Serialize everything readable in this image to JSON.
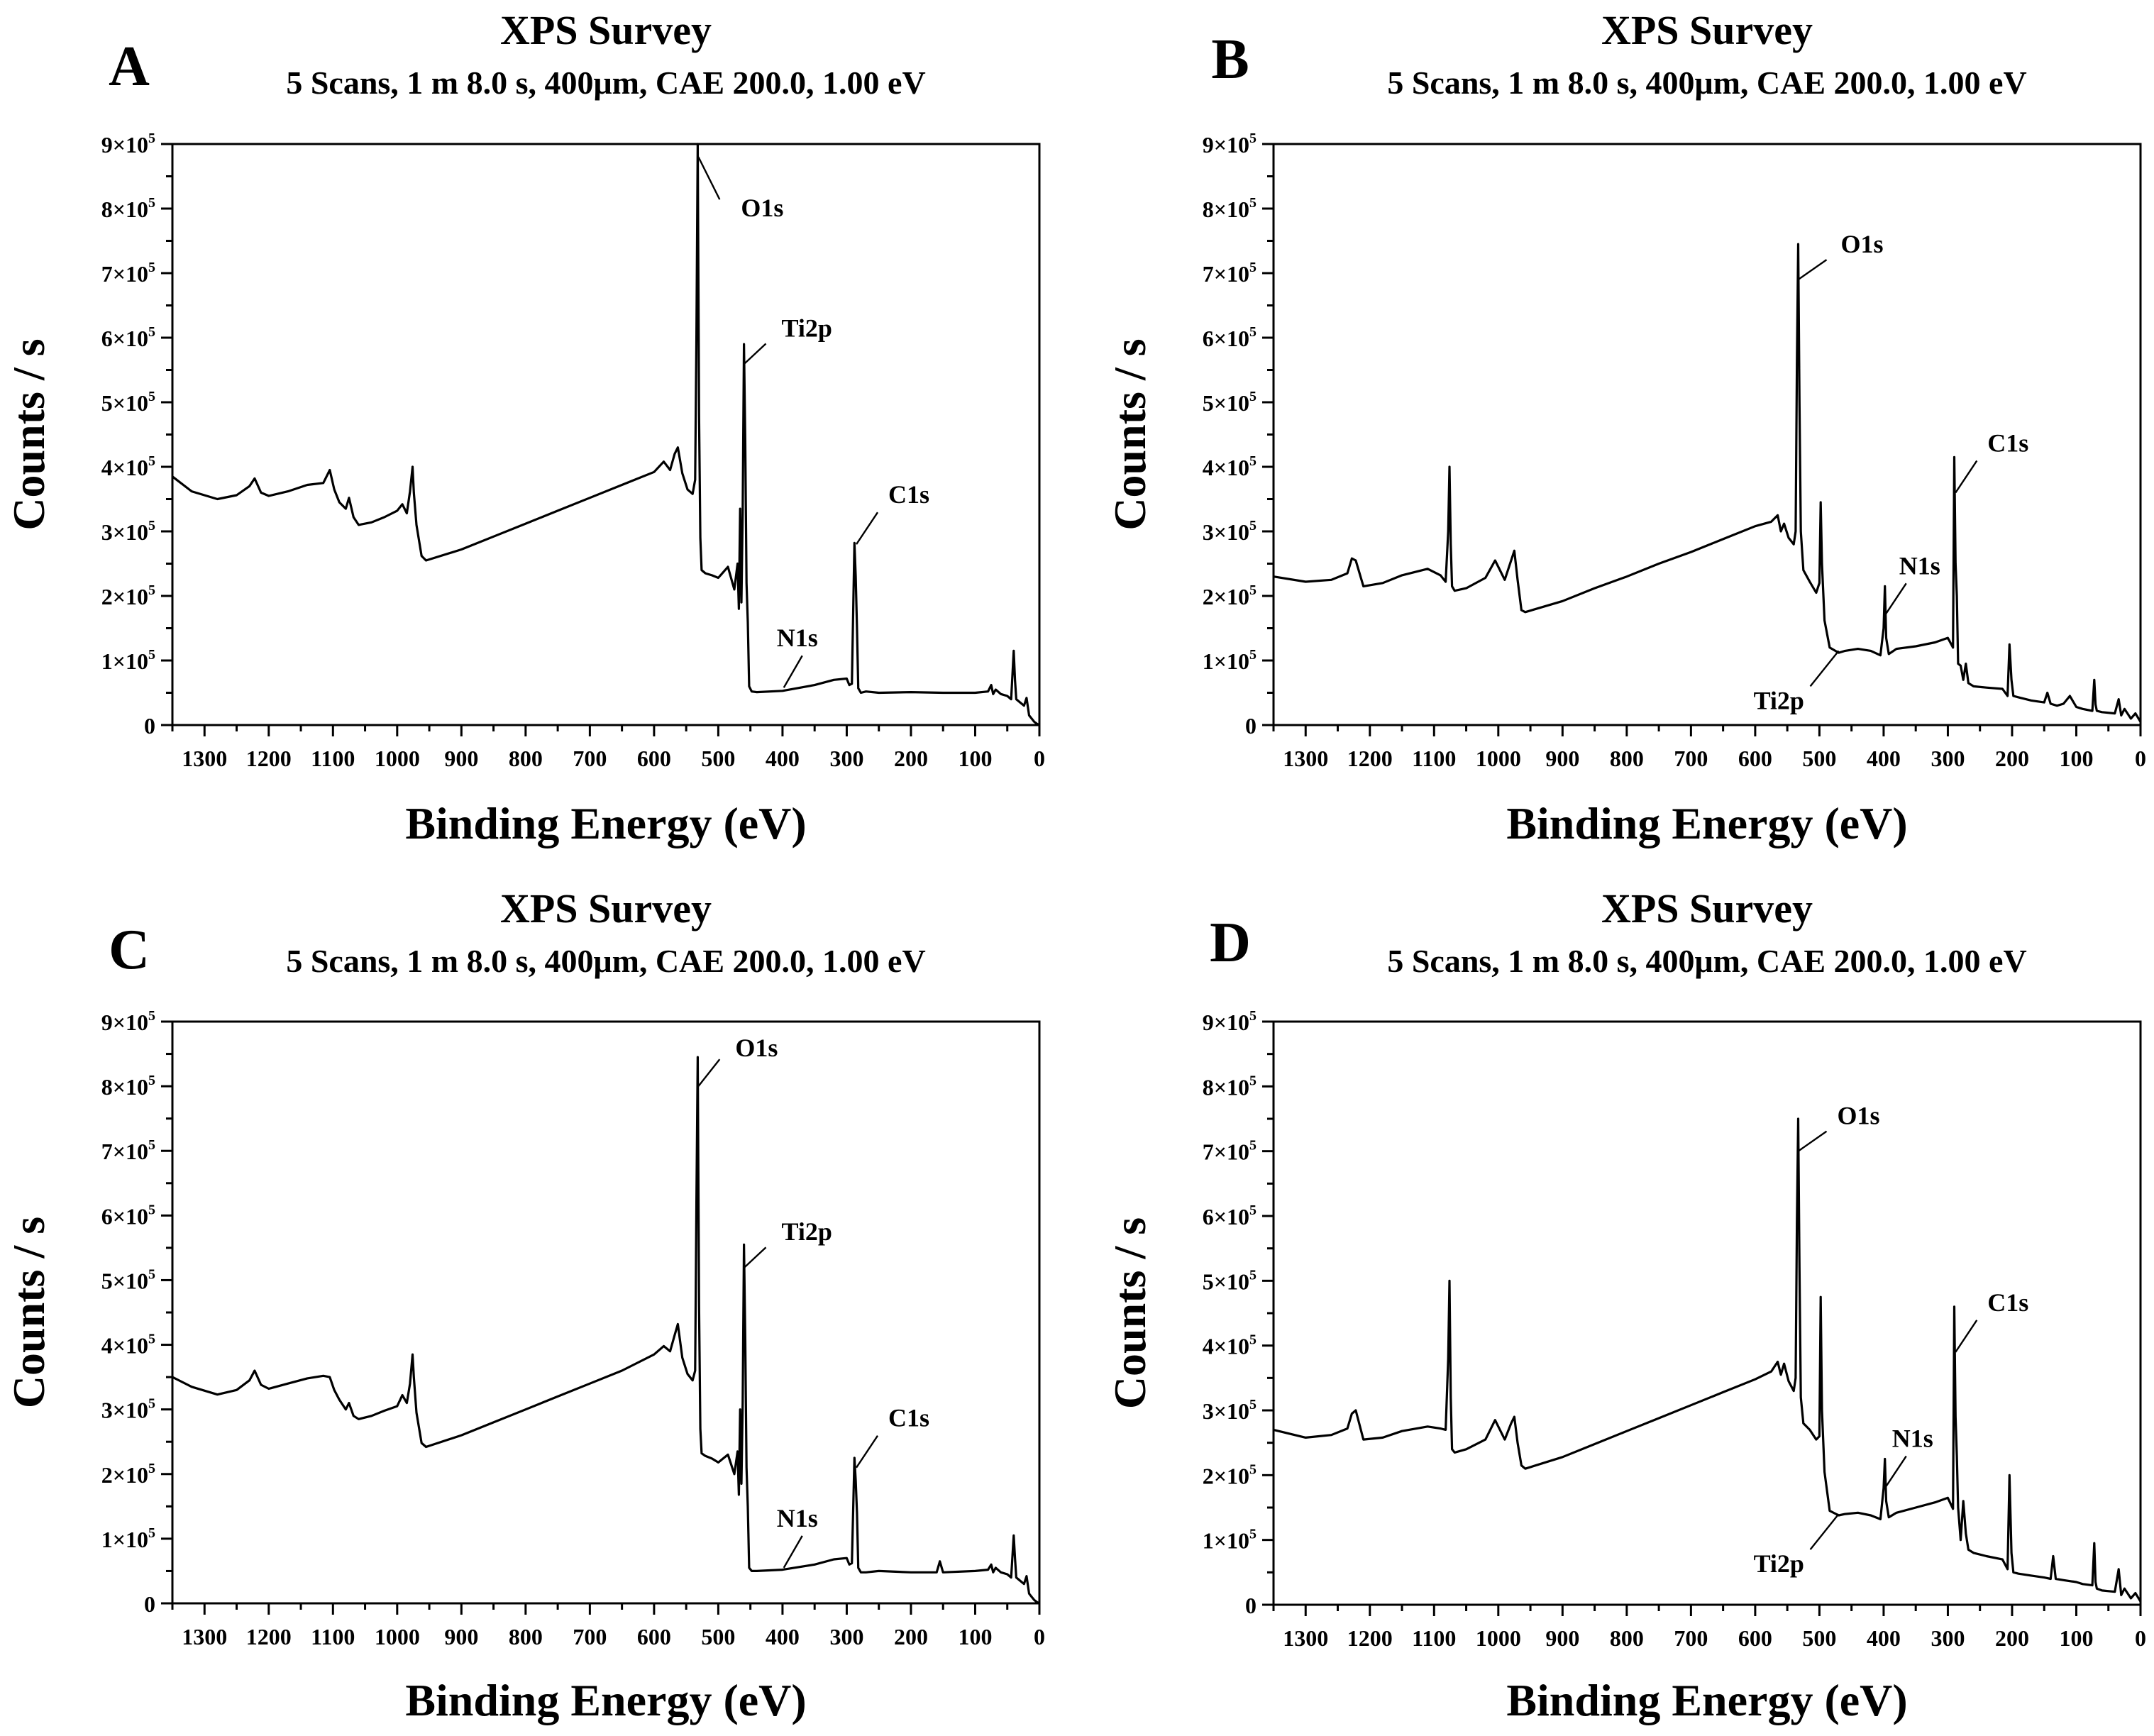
{
  "figure": {
    "panels": [
      "A",
      "B",
      "C",
      "D"
    ]
  },
  "colors": {
    "line": "#000000",
    "background": "#ffffff"
  },
  "chart_data": [
    {
      "panel": "A",
      "type": "line",
      "title": "XPS Survey",
      "subtitle": "5 Scans, 1 m 8.0 s, 400μm, CAE 200.0, 1.00 eV",
      "xlabel": "Binding Energy (eV)",
      "ylabel": "Counts / s",
      "xlim": [
        1350,
        0
      ],
      "ylim": [
        0,
        900000
      ],
      "xticks": [
        1300,
        1200,
        1100,
        1000,
        900,
        800,
        700,
        600,
        500,
        400,
        300,
        200,
        100,
        0
      ],
      "yticks": [
        {
          "value": 0,
          "mantissa": "0",
          "exp": ""
        },
        {
          "value": 100000,
          "mantissa": "1×10",
          "exp": "5"
        },
        {
          "value": 200000,
          "mantissa": "2×10",
          "exp": "5"
        },
        {
          "value": 300000,
          "mantissa": "3×10",
          "exp": "5"
        },
        {
          "value": 400000,
          "mantissa": "4×10",
          "exp": "5"
        },
        {
          "value": 500000,
          "mantissa": "5×10",
          "exp": "5"
        },
        {
          "value": 600000,
          "mantissa": "6×10",
          "exp": "5"
        },
        {
          "value": 700000,
          "mantissa": "7×10",
          "exp": "5"
        },
        {
          "value": 800000,
          "mantissa": "8×10",
          "exp": "5"
        },
        {
          "value": 900000,
          "mantissa": "9×10",
          "exp": "5"
        }
      ],
      "grid": false,
      "x": [
        1350,
        1320,
        1280,
        1250,
        1230,
        1222,
        1212,
        1200,
        1170,
        1140,
        1115,
        1105,
        1098,
        1090,
        1080,
        1075,
        1068,
        1060,
        1040,
        1020,
        1000,
        992,
        985,
        980,
        976,
        974,
        970,
        962,
        955,
        900,
        850,
        800,
        750,
        700,
        650,
        600,
        585,
        575,
        568,
        563,
        556,
        548,
        540,
        536,
        534,
        532,
        530,
        528,
        526,
        520,
        510,
        500,
        485,
        475,
        470,
        468,
        466,
        464,
        462,
        460,
        458,
        456,
        454,
        452,
        448,
        440,
        400,
        350,
        320,
        300,
        296,
        292,
        288,
        286,
        284,
        282,
        278,
        270,
        250,
        200,
        150,
        100,
        80,
        75,
        72,
        68,
        60,
        50,
        44,
        40,
        38,
        36,
        30,
        24,
        20,
        16,
        12,
        8,
        4,
        0
      ],
      "y": [
        385000,
        362000,
        350000,
        356000,
        370000,
        382000,
        360000,
        355000,
        362000,
        372000,
        375000,
        395000,
        365000,
        345000,
        335000,
        352000,
        322000,
        310000,
        314000,
        322000,
        332000,
        342000,
        328000,
        362000,
        400000,
        360000,
        310000,
        262000,
        255000,
        272000,
        292000,
        312000,
        332000,
        352000,
        372000,
        392000,
        408000,
        395000,
        420000,
        430000,
        390000,
        365000,
        358000,
        380000,
        600000,
        900000,
        480000,
        290000,
        240000,
        235000,
        232000,
        228000,
        245000,
        210000,
        250000,
        180000,
        335000,
        190000,
        330000,
        590000,
        440000,
        220000,
        160000,
        60000,
        52000,
        51000,
        53000,
        62000,
        70000,
        72000,
        62000,
        64000,
        282000,
        230000,
        150000,
        57000,
        50000,
        52000,
        50000,
        51000,
        50000,
        50000,
        52000,
        62000,
        48000,
        55000,
        48000,
        45000,
        40000,
        115000,
        70000,
        40000,
        35000,
        30000,
        42000,
        15000,
        10000,
        5000,
        2000,
        0
      ],
      "annotations": [
        {
          "label": "O1s",
          "x": 531,
          "y": 880000
        },
        {
          "label": "Ti2p",
          "x": 459,
          "y": 560000
        },
        {
          "label": "C1s",
          "x": 285,
          "y": 280000
        },
        {
          "label": "N1s",
          "x": 398,
          "y": 58000
        }
      ]
    },
    {
      "panel": "B",
      "type": "line",
      "title": "XPS Survey",
      "subtitle": "5 Scans, 1 m 8.0 s, 400μm, CAE 200.0, 1.00 eV",
      "xlabel": "Binding Energy (eV)",
      "ylabel": "Counts / s",
      "xlim": [
        1350,
        0
      ],
      "ylim": [
        0,
        900000
      ],
      "xticks": [
        1300,
        1200,
        1100,
        1000,
        900,
        800,
        700,
        600,
        500,
        400,
        300,
        200,
        100,
        0
      ],
      "yticks": [
        {
          "value": 0,
          "mantissa": "0",
          "exp": ""
        },
        {
          "value": 100000,
          "mantissa": "1×10",
          "exp": "5"
        },
        {
          "value": 200000,
          "mantissa": "2×10",
          "exp": "5"
        },
        {
          "value": 300000,
          "mantissa": "3×10",
          "exp": "5"
        },
        {
          "value": 400000,
          "mantissa": "4×10",
          "exp": "5"
        },
        {
          "value": 500000,
          "mantissa": "5×10",
          "exp": "5"
        },
        {
          "value": 600000,
          "mantissa": "6×10",
          "exp": "5"
        },
        {
          "value": 700000,
          "mantissa": "7×10",
          "exp": "5"
        },
        {
          "value": 800000,
          "mantissa": "8×10",
          "exp": "5"
        },
        {
          "value": 900000,
          "mantissa": "9×10",
          "exp": "5"
        }
      ],
      "grid": false,
      "x": [
        1350,
        1300,
        1260,
        1235,
        1228,
        1222,
        1210,
        1180,
        1150,
        1110,
        1090,
        1082,
        1078,
        1076,
        1074,
        1072,
        1068,
        1050,
        1020,
        1005,
        1000,
        990,
        980,
        975,
        970,
        964,
        958,
        900,
        850,
        800,
        750,
        700,
        650,
        600,
        575,
        565,
        560,
        555,
        548,
        540,
        537,
        535,
        533,
        531,
        529,
        525,
        515,
        505,
        500,
        498,
        496,
        492,
        484,
        470,
        460,
        440,
        420,
        405,
        400,
        398,
        396,
        392,
        380,
        350,
        320,
        300,
        292,
        290,
        288,
        286,
        284,
        280,
        276,
        272,
        268,
        260,
        240,
        215,
        207,
        204,
        201,
        198,
        190,
        170,
        150,
        145,
        140,
        130,
        120,
        110,
        100,
        90,
        75,
        72,
        70,
        68,
        60,
        40,
        34,
        30,
        25,
        15,
        8,
        0
      ],
      "y": [
        230000,
        222000,
        225000,
        235000,
        258000,
        255000,
        215000,
        220000,
        232000,
        242000,
        232000,
        222000,
        300000,
        400000,
        280000,
        215000,
        208000,
        212000,
        228000,
        255000,
        245000,
        225000,
        255000,
        270000,
        225000,
        178000,
        175000,
        192000,
        212000,
        230000,
        250000,
        268000,
        288000,
        308000,
        315000,
        325000,
        300000,
        312000,
        290000,
        280000,
        300000,
        560000,
        745000,
        500000,
        300000,
        240000,
        222000,
        205000,
        220000,
        345000,
        250000,
        162000,
        120000,
        112000,
        115000,
        118000,
        115000,
        108000,
        150000,
        215000,
        135000,
        110000,
        118000,
        122000,
        128000,
        135000,
        120000,
        415000,
        250000,
        200000,
        95000,
        92000,
        70000,
        95000,
        65000,
        60000,
        58000,
        56000,
        45000,
        125000,
        70000,
        45000,
        43000,
        38000,
        35000,
        50000,
        33000,
        30000,
        33000,
        45000,
        28000,
        25000,
        22000,
        70000,
        32000,
        22000,
        20000,
        18000,
        40000,
        15000,
        25000,
        10000,
        18000,
        5000
      ],
      "annotations": [
        {
          "label": "O1s",
          "x": 533,
          "y": 690000
        },
        {
          "label": "C1s",
          "x": 288,
          "y": 360000
        },
        {
          "label": "N1s",
          "x": 398,
          "y": 170000
        },
        {
          "label": "Ti2p",
          "x": 470,
          "y": 115000
        }
      ]
    },
    {
      "panel": "C",
      "type": "line",
      "title": "XPS Survey",
      "subtitle": "5 Scans, 1 m 8.0 s, 400μm, CAE 200.0, 1.00 eV",
      "xlabel": "Binding Energy (eV)",
      "ylabel": "Counts / s",
      "xlim": [
        1350,
        0
      ],
      "ylim": [
        0,
        900000
      ],
      "xticks": [
        1300,
        1200,
        1100,
        1000,
        900,
        800,
        700,
        600,
        500,
        400,
        300,
        200,
        100,
        0
      ],
      "yticks": [
        {
          "value": 0,
          "mantissa": "0",
          "exp": ""
        },
        {
          "value": 100000,
          "mantissa": "1×10",
          "exp": "5"
        },
        {
          "value": 200000,
          "mantissa": "2×10",
          "exp": "5"
        },
        {
          "value": 300000,
          "mantissa": "3×10",
          "exp": "5"
        },
        {
          "value": 400000,
          "mantissa": "4×10",
          "exp": "5"
        },
        {
          "value": 500000,
          "mantissa": "5×10",
          "exp": "5"
        },
        {
          "value": 600000,
          "mantissa": "6×10",
          "exp": "5"
        },
        {
          "value": 700000,
          "mantissa": "7×10",
          "exp": "5"
        },
        {
          "value": 800000,
          "mantissa": "8×10",
          "exp": "5"
        },
        {
          "value": 900000,
          "mantissa": "9×10",
          "exp": "5"
        }
      ],
      "grid": false,
      "x": [
        1350,
        1320,
        1280,
        1250,
        1230,
        1222,
        1212,
        1200,
        1170,
        1140,
        1115,
        1105,
        1098,
        1090,
        1080,
        1075,
        1068,
        1060,
        1040,
        1020,
        1000,
        992,
        985,
        980,
        976,
        974,
        970,
        962,
        955,
        900,
        850,
        800,
        750,
        700,
        650,
        600,
        585,
        575,
        568,
        563,
        556,
        548,
        540,
        536,
        534,
        532,
        530,
        528,
        526,
        520,
        510,
        500,
        485,
        475,
        470,
        468,
        466,
        464,
        462,
        460,
        458,
        456,
        454,
        452,
        448,
        440,
        400,
        350,
        320,
        300,
        296,
        292,
        288,
        286,
        284,
        282,
        278,
        270,
        250,
        200,
        160,
        155,
        150,
        100,
        80,
        75,
        72,
        68,
        60,
        50,
        44,
        40,
        38,
        36,
        30,
        24,
        20,
        16,
        12,
        8,
        4,
        0
      ],
      "y": [
        350000,
        335000,
        323000,
        330000,
        345000,
        360000,
        338000,
        332000,
        340000,
        348000,
        352000,
        350000,
        330000,
        315000,
        300000,
        310000,
        290000,
        285000,
        290000,
        298000,
        305000,
        322000,
        310000,
        340000,
        385000,
        350000,
        295000,
        248000,
        242000,
        260000,
        280000,
        300000,
        320000,
        340000,
        360000,
        385000,
        398000,
        390000,
        415000,
        432000,
        380000,
        355000,
        345000,
        360000,
        620000,
        845000,
        460000,
        270000,
        232000,
        228000,
        224000,
        218000,
        230000,
        200000,
        235000,
        168000,
        300000,
        185000,
        310000,
        555000,
        410000,
        210000,
        150000,
        55000,
        50000,
        50000,
        52000,
        60000,
        68000,
        70000,
        60000,
        62000,
        225000,
        190000,
        140000,
        55000,
        48000,
        48000,
        50000,
        48000,
        48000,
        65000,
        48000,
        50000,
        52000,
        60000,
        48000,
        55000,
        48000,
        45000,
        40000,
        105000,
        70000,
        40000,
        35000,
        30000,
        42000,
        15000,
        10000,
        5000,
        2000,
        0
      ],
      "annotations": [
        {
          "label": "O1s",
          "x": 531,
          "y": 800000
        },
        {
          "label": "Ti2p",
          "x": 459,
          "y": 520000
        },
        {
          "label": "C1s",
          "x": 285,
          "y": 210000
        },
        {
          "label": "N1s",
          "x": 398,
          "y": 55000
        }
      ]
    },
    {
      "panel": "D",
      "type": "line",
      "title": "XPS Survey",
      "subtitle": "5 Scans, 1 m 8.0 s, 400μm, CAE 200.0, 1.00 eV",
      "xlabel": "Binding Energy (eV)",
      "ylabel": "Counts / s",
      "xlim": [
        1350,
        0
      ],
      "ylim": [
        0,
        900000
      ],
      "xticks": [
        1300,
        1200,
        1100,
        1000,
        900,
        800,
        700,
        600,
        500,
        400,
        300,
        200,
        100,
        0
      ],
      "yticks": [
        {
          "value": 0,
          "mantissa": "0",
          "exp": ""
        },
        {
          "value": 100000,
          "mantissa": "1×10",
          "exp": "5"
        },
        {
          "value": 200000,
          "mantissa": "2×10",
          "exp": "5"
        },
        {
          "value": 300000,
          "mantissa": "3×10",
          "exp": "5"
        },
        {
          "value": 400000,
          "mantissa": "4×10",
          "exp": "5"
        },
        {
          "value": 500000,
          "mantissa": "5×10",
          "exp": "5"
        },
        {
          "value": 600000,
          "mantissa": "6×10",
          "exp": "5"
        },
        {
          "value": 700000,
          "mantissa": "7×10",
          "exp": "5"
        },
        {
          "value": 800000,
          "mantissa": "8×10",
          "exp": "5"
        },
        {
          "value": 900000,
          "mantissa": "9×10",
          "exp": "5"
        }
      ],
      "grid": false,
      "x": [
        1350,
        1300,
        1260,
        1235,
        1228,
        1222,
        1210,
        1180,
        1150,
        1110,
        1090,
        1082,
        1078,
        1076,
        1074,
        1072,
        1068,
        1050,
        1020,
        1005,
        1000,
        990,
        980,
        975,
        970,
        964,
        958,
        900,
        850,
        800,
        750,
        700,
        650,
        600,
        575,
        565,
        560,
        555,
        548,
        540,
        537,
        535,
        533,
        531,
        529,
        525,
        515,
        505,
        500,
        498,
        496,
        492,
        484,
        470,
        460,
        440,
        420,
        405,
        400,
        398,
        396,
        392,
        380,
        350,
        320,
        300,
        292,
        290,
        288,
        286,
        284,
        280,
        276,
        272,
        268,
        260,
        240,
        215,
        207,
        204,
        201,
        198,
        190,
        170,
        150,
        140,
        136,
        132,
        120,
        100,
        90,
        75,
        72,
        70,
        68,
        60,
        40,
        34,
        30,
        25,
        15,
        8,
        0
      ],
      "y": [
        270000,
        258000,
        262000,
        272000,
        295000,
        300000,
        255000,
        258000,
        268000,
        275000,
        272000,
        270000,
        380000,
        500000,
        320000,
        240000,
        235000,
        240000,
        255000,
        285000,
        275000,
        255000,
        280000,
        290000,
        250000,
        215000,
        210000,
        228000,
        248000,
        268000,
        288000,
        308000,
        328000,
        348000,
        360000,
        375000,
        355000,
        372000,
        345000,
        330000,
        350000,
        590000,
        750000,
        520000,
        320000,
        280000,
        270000,
        255000,
        260000,
        475000,
        300000,
        205000,
        145000,
        138000,
        140000,
        142000,
        138000,
        132000,
        180000,
        225000,
        160000,
        135000,
        142000,
        150000,
        158000,
        165000,
        148000,
        460000,
        290000,
        230000,
        150000,
        100000,
        160000,
        110000,
        85000,
        80000,
        75000,
        70000,
        55000,
        200000,
        80000,
        50000,
        48000,
        45000,
        42000,
        40000,
        75000,
        40000,
        38000,
        35000,
        32000,
        30000,
        95000,
        35000,
        25000,
        22000,
        20000,
        55000,
        15000,
        25000,
        10000,
        18000,
        5000
      ],
      "annotations": [
        {
          "label": "O1s",
          "x": 533,
          "y": 700000
        },
        {
          "label": "C1s",
          "x": 288,
          "y": 390000
        },
        {
          "label": "N1s",
          "x": 398,
          "y": 180000
        },
        {
          "label": "Ti2p",
          "x": 470,
          "y": 140000
        }
      ]
    }
  ]
}
